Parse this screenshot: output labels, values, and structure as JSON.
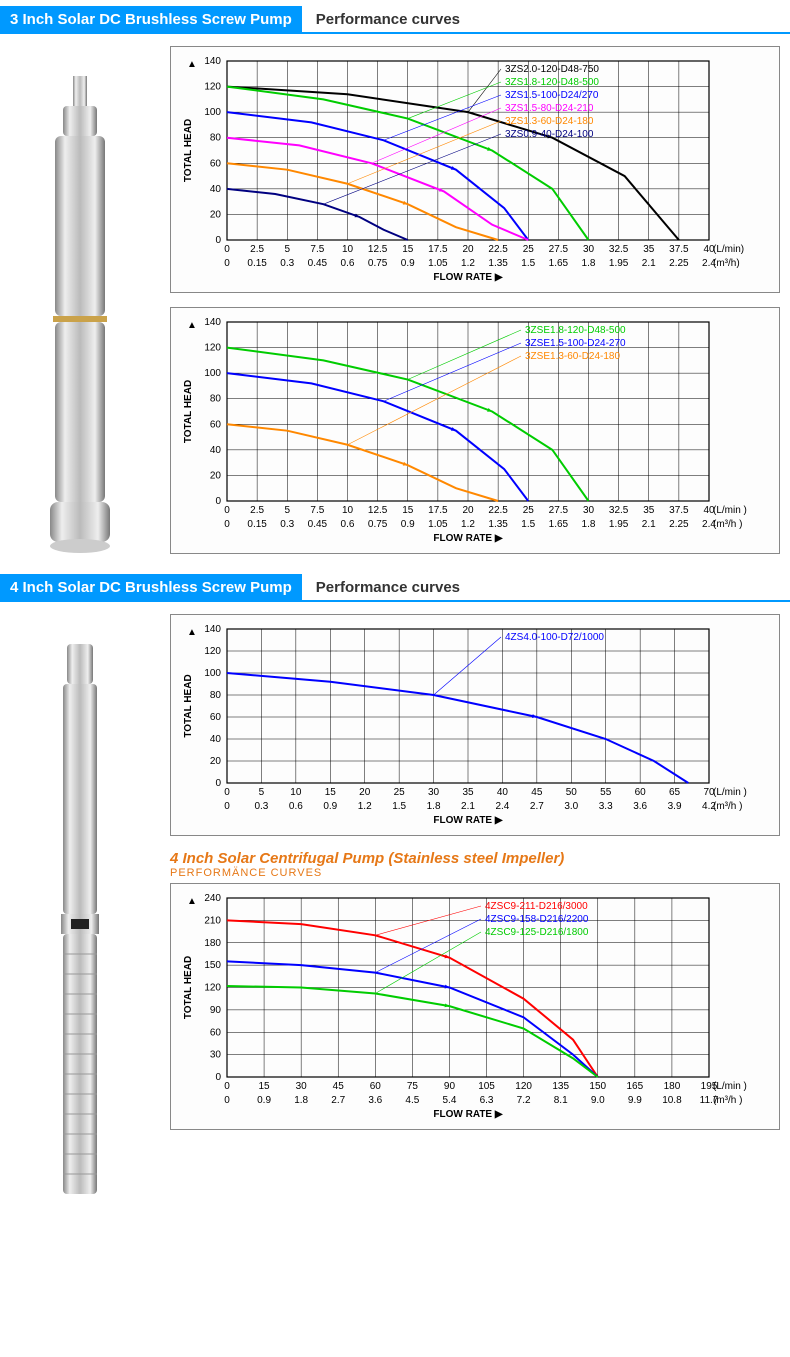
{
  "sections": [
    {
      "title_blue": "3 Inch Solar DC Brushless Screw Pump",
      "title_sub": "Performance curves"
    },
    {
      "title_blue": "4 Inch Solar DC Brushless Screw Pump",
      "title_sub": "Performance curves"
    }
  ],
  "centrifugal": {
    "title": "4 Inch Solar Centrifugal Pump (Stainless steel Impeller)",
    "subtitle": "PERFORMÄNCE CURVES"
  },
  "chart1": {
    "type": "line",
    "ylabel": "TOTAL HEAD",
    "xlabel": "FLOW RATE",
    "ylim": [
      0,
      140
    ],
    "ytick_step": 20,
    "x_ticks_top": [
      "0",
      "2.5",
      "5",
      "7.5",
      "10",
      "12.5",
      "15",
      "17.5",
      "20",
      "22.5",
      "25",
      "27.5",
      "30",
      "32.5",
      "35",
      "37.5",
      "40"
    ],
    "x_unit_top": "(L/min)",
    "x_ticks_bot": [
      "0",
      "0.15",
      "0.3",
      "0.45",
      "0.6",
      "0.75",
      "0.9",
      "1.05",
      "1.2",
      "1.35",
      "1.5",
      "1.65",
      "1.8",
      "1.95",
      "2.1",
      "2.25",
      "2.4"
    ],
    "x_unit_bot": "(m³/h)",
    "grid_color": "#000000",
    "background": "#ffffff",
    "series": [
      {
        "label": "3ZS2.0-120-D48-750",
        "color": "#000000",
        "points": [
          [
            0,
            120
          ],
          [
            10,
            114
          ],
          [
            20,
            100
          ],
          [
            27,
            80
          ],
          [
            33,
            50
          ],
          [
            37.5,
            0
          ]
        ]
      },
      {
        "label": "3ZS1.8-120-D48-500",
        "color": "#00cc00",
        "points": [
          [
            0,
            120
          ],
          [
            8,
            110
          ],
          [
            15,
            95
          ],
          [
            22,
            70
          ],
          [
            27,
            40
          ],
          [
            30,
            0
          ]
        ]
      },
      {
        "label": "3ZS1.5-100-D24/270",
        "color": "#0000ff",
        "points": [
          [
            0,
            100
          ],
          [
            7,
            92
          ],
          [
            13,
            78
          ],
          [
            19,
            55
          ],
          [
            23,
            25
          ],
          [
            25,
            0
          ]
        ]
      },
      {
        "label": "3ZS1.5-80-D24-210",
        "color": "#ff00ff",
        "points": [
          [
            0,
            80
          ],
          [
            6,
            74
          ],
          [
            12,
            60
          ],
          [
            18,
            38
          ],
          [
            22,
            12
          ],
          [
            25,
            0
          ]
        ]
      },
      {
        "label": "3ZS1.3-60-D24-180",
        "color": "#ff8800",
        "points": [
          [
            0,
            60
          ],
          [
            5,
            55
          ],
          [
            10,
            44
          ],
          [
            15,
            28
          ],
          [
            19,
            10
          ],
          [
            22.5,
            0
          ]
        ]
      },
      {
        "label": "3ZS0.9-40-D24-100",
        "color": "#000080",
        "points": [
          [
            0,
            40
          ],
          [
            4,
            36
          ],
          [
            8,
            28
          ],
          [
            11,
            18
          ],
          [
            13,
            8
          ],
          [
            15,
            0
          ]
        ]
      }
    ]
  },
  "chart2": {
    "type": "line",
    "ylabel": "TOTAL HEAD",
    "xlabel": "FLOW RATE",
    "ylim": [
      0,
      140
    ],
    "ytick_step": 20,
    "x_ticks_top": [
      "0",
      "2.5",
      "5",
      "7.5",
      "10",
      "12.5",
      "15",
      "17.5",
      "20",
      "22.5",
      "25",
      "27.5",
      "30",
      "32.5",
      "35",
      "37.5",
      "40"
    ],
    "x_unit_top": "(L/min  )",
    "x_ticks_bot": [
      "0",
      "0.15",
      "0.3",
      "0.45",
      "0.6",
      "0.75",
      "0.9",
      "1.05",
      "1.2",
      "1.35",
      "1.5",
      "1.65",
      "1.8",
      "1.95",
      "2.1",
      "2.25",
      "2.4"
    ],
    "x_unit_bot": "(m³/h  )",
    "grid_color": "#000000",
    "background": "#ffffff",
    "series": [
      {
        "label": "3ZSE1.8-120-D48-500",
        "color": "#00cc00",
        "points": [
          [
            0,
            120
          ],
          [
            8,
            110
          ],
          [
            15,
            95
          ],
          [
            22,
            70
          ],
          [
            27,
            40
          ],
          [
            30,
            0
          ]
        ]
      },
      {
        "label": "3ZSE1.5-100-D24-270",
        "color": "#0000ff",
        "points": [
          [
            0,
            100
          ],
          [
            7,
            92
          ],
          [
            13,
            78
          ],
          [
            19,
            55
          ],
          [
            23,
            25
          ],
          [
            25,
            0
          ]
        ]
      },
      {
        "label": "3ZSE1.3-60-D24-180",
        "color": "#ff8800",
        "points": [
          [
            0,
            60
          ],
          [
            5,
            55
          ],
          [
            10,
            44
          ],
          [
            15,
            28
          ],
          [
            19,
            10
          ],
          [
            22.5,
            0
          ]
        ]
      }
    ]
  },
  "chart3": {
    "type": "line",
    "ylabel": "TOTAL HEAD",
    "xlabel": "FLOW RATE",
    "ylim": [
      0,
      140
    ],
    "ytick_step": 20,
    "x_ticks_top": [
      "0",
      "5",
      "10",
      "15",
      "20",
      "25",
      "30",
      "35",
      "40",
      "45",
      "50",
      "55",
      "60",
      "65",
      "70"
    ],
    "x_unit_top": "(L/min  )",
    "x_ticks_bot": [
      "0",
      "0.3",
      "0.6",
      "0.9",
      "1.2",
      "1.5",
      "1.8",
      "2.1",
      "2.4",
      "2.7",
      "3.0",
      "3.3",
      "3.6",
      "3.9",
      "4.2"
    ],
    "x_unit_bot": "(m³/h  )",
    "grid_color": "#000000",
    "background": "#ffffff",
    "series": [
      {
        "label": "4ZS4.0-100-D72/1000",
        "color": "#0000ff",
        "points": [
          [
            0,
            100
          ],
          [
            15,
            92
          ],
          [
            30,
            80
          ],
          [
            45,
            60
          ],
          [
            55,
            40
          ],
          [
            62,
            20
          ],
          [
            67,
            0
          ]
        ]
      }
    ]
  },
  "chart4": {
    "type": "line",
    "ylabel": "TOTAL HEAD",
    "xlabel": "FLOW RATE",
    "ylim": [
      0,
      240
    ],
    "ytick_step": 30,
    "x_ticks_top": [
      "0",
      "15",
      "30",
      "45",
      "60",
      "75",
      "90",
      "105",
      "120",
      "135",
      "150",
      "165",
      "180",
      "195"
    ],
    "x_unit_top": "(L/min  )",
    "x_ticks_bot": [
      "0",
      "0.9",
      "1.8",
      "2.7",
      "3.6",
      "4.5",
      "5.4",
      "6.3",
      "7.2",
      "8.1",
      "9.0",
      "9.9",
      "10.8",
      "11.7"
    ],
    "x_unit_bot": "(m³/h  )",
    "grid_color": "#000000",
    "background": "#ffffff",
    "series": [
      {
        "label": "4ZSC9-211-D216/3000",
        "color": "#ff0000",
        "points": [
          [
            0,
            210
          ],
          [
            30,
            205
          ],
          [
            60,
            190
          ],
          [
            90,
            160
          ],
          [
            120,
            105
          ],
          [
            140,
            50
          ],
          [
            150,
            0
          ]
        ]
      },
      {
        "label": "4ZSC9-158-D216/2200",
        "color": "#0000ff",
        "points": [
          [
            0,
            155
          ],
          [
            30,
            150
          ],
          [
            60,
            140
          ],
          [
            90,
            120
          ],
          [
            120,
            80
          ],
          [
            140,
            30
          ],
          [
            150,
            0
          ]
        ]
      },
      {
        "label": "4ZSC9-125-D216/1800",
        "color": "#00cc00",
        "points": [
          [
            0,
            122
          ],
          [
            30,
            120
          ],
          [
            60,
            112
          ],
          [
            90,
            95
          ],
          [
            120,
            65
          ],
          [
            140,
            25
          ],
          [
            150,
            0
          ]
        ]
      }
    ]
  },
  "colors": {
    "header_blue": "#0099ff",
    "orange": "#e67817"
  }
}
